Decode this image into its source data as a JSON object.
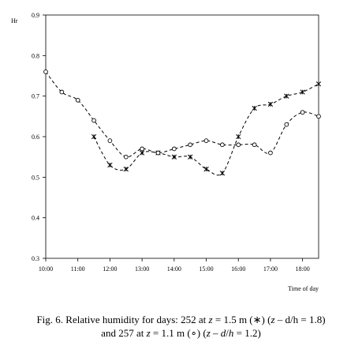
{
  "chart_data": {
    "type": "line",
    "ylabel": "Hr",
    "xlabel": "Time of day",
    "xlim": [
      "10:00",
      "18:30"
    ],
    "ylim": [
      0.3,
      0.9
    ],
    "xticks": [
      "10:00",
      "11:00",
      "12:00",
      "13:00",
      "14:00",
      "15:00",
      "16:00",
      "17:00",
      "18:00"
    ],
    "yticks": [
      "0.3",
      "0.4",
      "0.5",
      "0.6",
      "0.7",
      "0.8",
      "0.9"
    ],
    "grid": false,
    "line_style": "dashed",
    "series": [
      {
        "marker": "asterisk",
        "x": [
          "11:30",
          "12:00",
          "12:30",
          "13:00",
          "13:30",
          "14:00",
          "14:30",
          "15:00",
          "15:30",
          "16:00",
          "16:30",
          "17:00",
          "17:30",
          "18:00",
          "18:30"
        ],
        "y": [
          0.6,
          0.53,
          0.52,
          0.56,
          0.56,
          0.55,
          0.55,
          0.52,
          0.51,
          0.6,
          0.67,
          0.68,
          0.7,
          0.71,
          0.73
        ]
      },
      {
        "marker": "circle",
        "x": [
          "10:00",
          "10:30",
          "11:00",
          "11:30",
          "12:00",
          "12:30",
          "13:00",
          "13:30",
          "14:00",
          "14:30",
          "15:00",
          "15:30",
          "16:00",
          "16:30",
          "17:00",
          "17:30",
          "18:00",
          "18:30"
        ],
        "y": [
          0.76,
          0.71,
          0.69,
          0.64,
          0.59,
          0.55,
          0.57,
          0.56,
          0.57,
          0.58,
          0.59,
          0.58,
          0.58,
          0.58,
          0.56,
          0.63,
          0.66,
          0.65
        ]
      }
    ]
  },
  "caption": {
    "line1_a": "Fig. 6. Relative humidity for days: 252 at ",
    "line1_z": "z",
    "line1_b": " = 1.5 m (∗) (",
    "line1_z2": "z",
    "line1_c": " – d/h = 1.8)",
    "line2_a": "and 257 at ",
    "line2_z": "z",
    "line2_b": " = 1.1 m (∘) (",
    "line2_z2": "z",
    "line2_c": " – ",
    "line2_d": "d",
    "line2_e": "/",
    "line2_h": "h",
    "line2_f": " = 1.2)"
  }
}
